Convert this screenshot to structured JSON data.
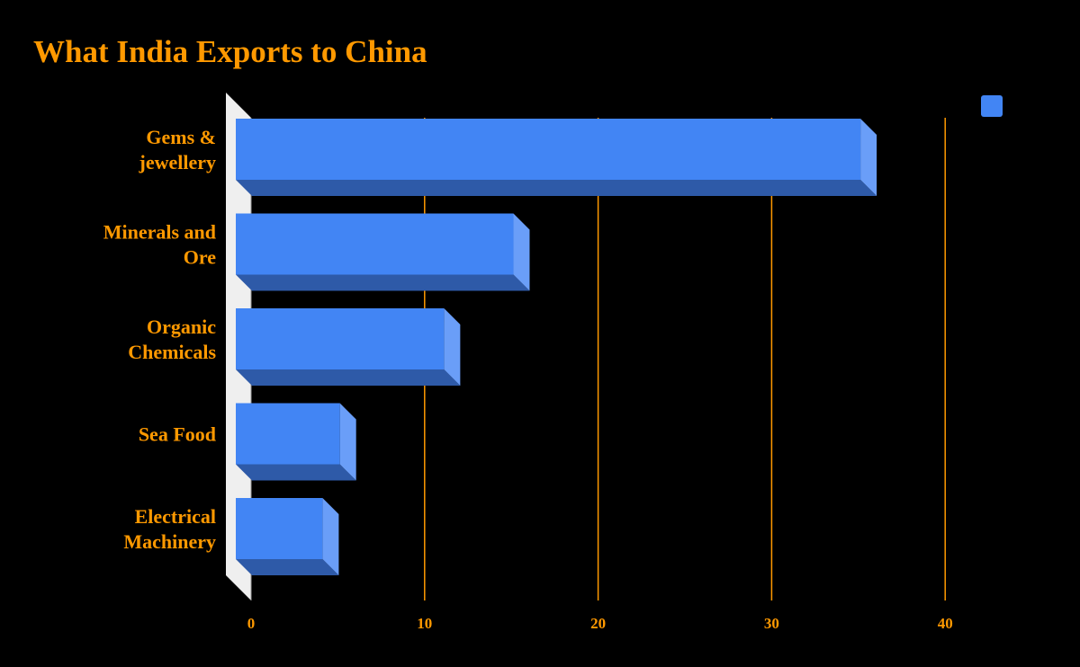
{
  "chart_data": {
    "type": "bar",
    "orientation": "horizontal",
    "style": "3d",
    "title": "What India Exports to China",
    "categories": [
      [
        "Gems &",
        "jewellery"
      ],
      [
        "Minerals and",
        "Ore"
      ],
      [
        "Organic",
        "Chemicals"
      ],
      [
        "Sea Food"
      ],
      [
        "Electrical",
        "Machinery"
      ]
    ],
    "series": [
      {
        "name": "",
        "values": [
          36,
          16,
          12,
          6,
          5
        ]
      }
    ],
    "xlim": [
      0,
      45
    ],
    "xticks": [
      "0",
      "10",
      "20",
      "30",
      "40"
    ],
    "xtick_values": [
      0,
      10,
      20,
      30,
      40
    ],
    "grid": true,
    "legend": "top-right",
    "colors": {
      "bar_front": "#4285F4",
      "bar_bottom": "#2E5AA8",
      "bar_side": "#6A9EF8",
      "text": "#FF9900",
      "grid": "#FF9900",
      "wall": "#EFEFEF",
      "background": "#000000"
    }
  }
}
